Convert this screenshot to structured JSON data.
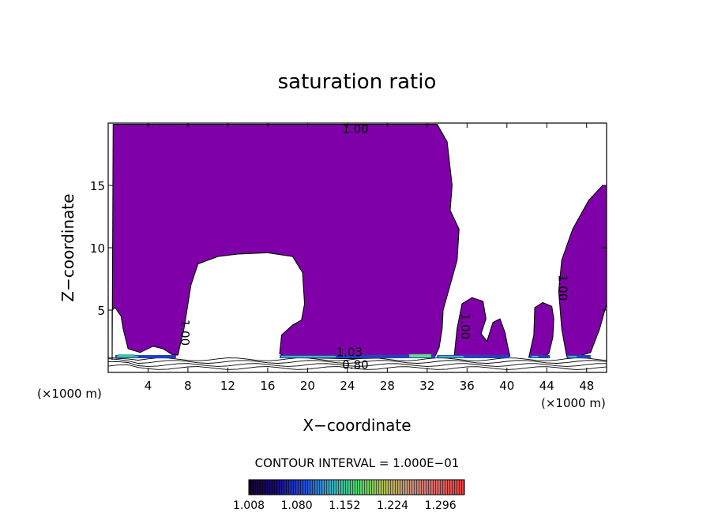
{
  "chart_data": {
    "type": "heatmap",
    "title": "saturation ratio",
    "xlabel": "X−coordinate",
    "ylabel": "Z−coordinate",
    "x_unit_left": "(×1000 m)",
    "x_unit_right": "(×1000 m)",
    "xlim": [
      0,
      50
    ],
    "ylim": [
      0,
      20
    ],
    "x_ticks": [
      4,
      8,
      12,
      16,
      20,
      24,
      28,
      32,
      36,
      40,
      44,
      48
    ],
    "y_ticks": [
      5,
      10,
      15
    ],
    "x_tick_labels": [
      "4",
      "8",
      "12",
      "16",
      "20",
      "24",
      "28",
      "32",
      "36",
      "40",
      "44",
      "48"
    ],
    "y_tick_labels": [
      "5",
      "10",
      "15"
    ],
    "contour_interval": "CONTOUR INTERVAL = 1.000E−01",
    "contour_labels": [
      {
        "text": "1.00",
        "x": 24.8,
        "z": 19.2,
        "rotate": 0
      },
      {
        "text": "1.00",
        "x": 7.3,
        "z": 3.2,
        "rotate": 90
      },
      {
        "text": "1.00",
        "x": 35.4,
        "z": 3.7,
        "rotate": 90
      },
      {
        "text": "1.00",
        "x": 45.2,
        "z": 6.8,
        "rotate": 90
      },
      {
        "text": "0.80",
        "x": 24.8,
        "z": 0.3,
        "rotate": 0
      },
      {
        "text": "1.03",
        "x": 24.2,
        "z": 1.3,
        "rotate": 0
      }
    ],
    "colorbar": {
      "min": 1.008,
      "max": 1.332,
      "tick_labels": [
        "1.008",
        "1.080",
        "1.152",
        "1.224",
        "1.296"
      ],
      "colors": [
        "#140028",
        "#1a0a80",
        "#1f4ad8",
        "#3aa8c8",
        "#48d870",
        "#b0c050",
        "#c89080",
        "#d86868",
        "#e84040"
      ]
    },
    "fill_color": "#7f00a8",
    "supersaturation_band": {
      "z": 1.2,
      "colors": [
        "#2040c0",
        "#40c0a0",
        "#60e080"
      ]
    },
    "regions_saturated": [
      {
        "name": "main-cloud",
        "outline": [
          [
            0.4,
            1.0
          ],
          [
            0.5,
            19.9
          ],
          [
            33,
            19.9
          ],
          [
            34,
            18.5
          ],
          [
            34.5,
            15
          ],
          [
            34.3,
            13
          ],
          [
            35.2,
            11.5
          ],
          [
            35,
            9
          ],
          [
            34.3,
            7
          ],
          [
            33.6,
            5
          ],
          [
            33.5,
            3.5
          ],
          [
            33.2,
            2
          ],
          [
            32.8,
            1.3
          ],
          [
            31,
            1.2
          ],
          [
            24,
            1.1
          ],
          [
            18,
            1.2
          ],
          [
            17.2,
            1.5
          ],
          [
            17.4,
            3
          ],
          [
            18.5,
            3.8
          ],
          [
            19.4,
            4.2
          ],
          [
            19.7,
            5.5
          ],
          [
            19.5,
            8
          ],
          [
            18.5,
            9.3
          ],
          [
            16,
            9.6
          ],
          [
            13,
            9.5
          ],
          [
            11,
            9.3
          ],
          [
            9,
            8.7
          ],
          [
            8.3,
            7
          ],
          [
            7.9,
            5
          ],
          [
            7.6,
            3.5
          ],
          [
            7.3,
            2.5
          ],
          [
            7.0,
            1.4
          ],
          [
            6.5,
            1.4
          ],
          [
            5.5,
            1.9
          ],
          [
            4.5,
            2.1
          ],
          [
            3.2,
            1.6
          ],
          [
            2.0,
            1.9
          ],
          [
            1.5,
            3.5
          ],
          [
            1.3,
            4.5
          ],
          [
            0.7,
            5.2
          ],
          [
            0.4,
            5
          ]
        ]
      },
      {
        "name": "small-cell-1",
        "outline": [
          [
            34.7,
            1.2
          ],
          [
            35,
            3.5
          ],
          [
            35.5,
            5.5
          ],
          [
            36.5,
            6.0
          ],
          [
            37.6,
            5.7
          ],
          [
            37.9,
            4.3
          ],
          [
            37.4,
            3.1
          ],
          [
            38,
            2.5
          ],
          [
            38.6,
            4.0
          ],
          [
            39.3,
            4.3
          ],
          [
            39.8,
            3.2
          ],
          [
            40.1,
            2.0
          ],
          [
            40.3,
            1.3
          ],
          [
            38.5,
            1.2
          ],
          [
            36.5,
            1.2
          ]
        ]
      },
      {
        "name": "small-cell-2",
        "outline": [
          [
            42.2,
            1.2
          ],
          [
            42.7,
            3.0
          ],
          [
            42.8,
            5.2
          ],
          [
            43.6,
            5.6
          ],
          [
            44.5,
            5.3
          ],
          [
            44.7,
            4.3
          ],
          [
            44.6,
            2.8
          ],
          [
            44.2,
            1.5
          ],
          [
            43.5,
            1.2
          ]
        ]
      },
      {
        "name": "right-cell",
        "outline": [
          [
            46,
            1.3
          ],
          [
            45.5,
            3.5
          ],
          [
            45.2,
            6.5
          ],
          [
            45.5,
            9
          ],
          [
            46.6,
            11.5
          ],
          [
            48.2,
            13.8
          ],
          [
            49.6,
            15.0
          ],
          [
            50,
            15.0
          ],
          [
            50,
            5.5
          ],
          [
            49.3,
            3.5
          ],
          [
            48.4,
            1.6
          ],
          [
            47.2,
            1.3
          ]
        ]
      }
    ]
  }
}
